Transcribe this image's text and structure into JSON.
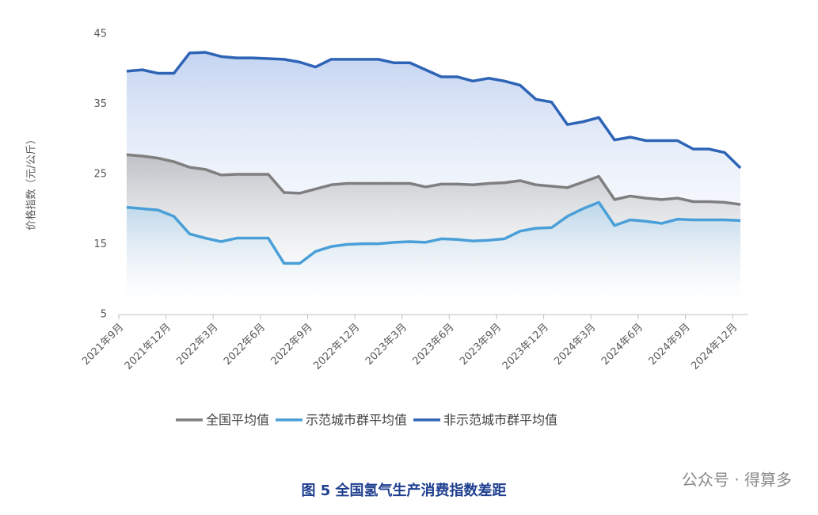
{
  "chart_data": {
    "type": "line",
    "title": "图 5 全国氢气生产消费指数差距",
    "watermark": "公众号 · 得算多",
    "y_label": "价格指数（元/公斤）",
    "categories": [
      "2021年9月",
      null,
      null,
      "2021年12月",
      null,
      null,
      "2022年3月",
      null,
      null,
      "2022年6月",
      null,
      null,
      "2022年9月",
      null,
      null,
      "2022年12月",
      null,
      null,
      "2023年3月",
      null,
      null,
      "2023年6月",
      null,
      null,
      "2023年9月",
      null,
      null,
      "2023年12月",
      null,
      null,
      "2024年3月",
      null,
      null,
      "2024年6月",
      null,
      null,
      "2024年9月",
      null,
      null,
      "2024年12月"
    ],
    "series": [
      {
        "name": "全国平均值",
        "color": "#7f7f7f",
        "fill": "#9a9a9a",
        "values": [
          27.8,
          27.6,
          27.3,
          26.8,
          26.0,
          25.7,
          24.9,
          25.0,
          25.0,
          25.0,
          22.4,
          22.3,
          22.9,
          23.5,
          23.7,
          23.7,
          23.7,
          23.7,
          23.7,
          23.2,
          23.6,
          23.6,
          23.5,
          23.7,
          23.8,
          24.1,
          23.5,
          23.3,
          23.1,
          23.9,
          24.7,
          21.4,
          21.9,
          21.6,
          21.4,
          21.6,
          21.1,
          21.1,
          21.0,
          20.7
        ]
      },
      {
        "name": "示范城市群平均值",
        "color": "#4a9fd8",
        "fill": "#9fd0f0",
        "values": [
          20.3,
          20.1,
          19.9,
          19.0,
          16.5,
          15.9,
          15.4,
          15.9,
          15.9,
          15.9,
          12.3,
          12.3,
          14.0,
          14.7,
          15.0,
          15.1,
          15.1,
          15.3,
          15.4,
          15.3,
          15.8,
          15.7,
          15.5,
          15.6,
          15.8,
          16.9,
          17.3,
          17.4,
          19.0,
          20.1,
          21.0,
          17.7,
          18.5,
          18.3,
          18.0,
          18.6,
          18.5,
          18.5,
          18.5,
          18.4
        ]
      },
      {
        "name": "非示范城市群平均值",
        "color": "#2e64b6",
        "fill": "#7b9fe0",
        "values": [
          39.7,
          39.9,
          39.4,
          39.4,
          42.3,
          42.4,
          41.8,
          41.6,
          41.6,
          41.5,
          41.4,
          41.0,
          40.3,
          41.4,
          41.4,
          41.4,
          41.4,
          40.9,
          40.9,
          39.9,
          38.9,
          38.9,
          38.3,
          38.7,
          38.3,
          37.7,
          35.7,
          35.3,
          32.1,
          32.5,
          33.1,
          29.9,
          30.3,
          29.8,
          29.8,
          29.8,
          28.6,
          28.6,
          28.1,
          25.9
        ]
      }
    ],
    "ylim": [
      5,
      45
    ],
    "yticks": [
      5,
      15,
      25,
      35,
      45
    ],
    "grid": false
  }
}
